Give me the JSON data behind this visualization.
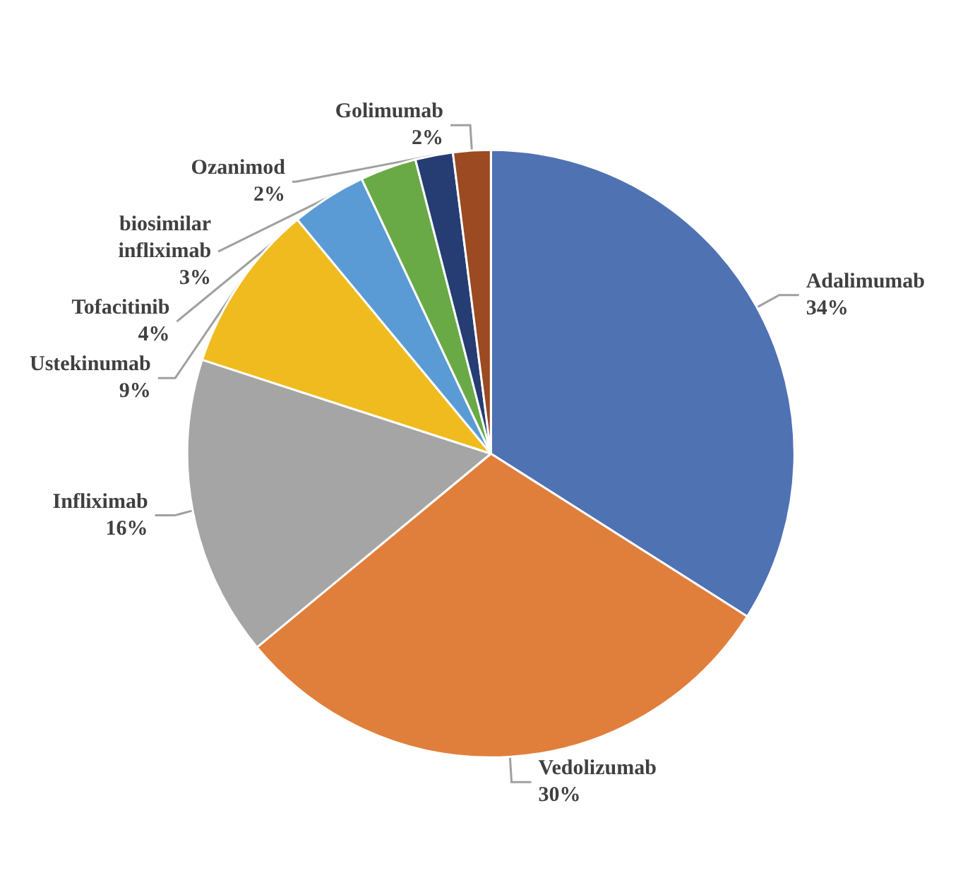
{
  "chart_data": {
    "type": "pie",
    "categories": [
      "Adalimumab",
      "Vedolizumab",
      "Infliximab",
      "Ustekinumab",
      "Tofacitinib",
      "biosimilar\ninfliximab",
      "Ozanimod",
      "Golimumab"
    ],
    "values": [
      34,
      30,
      16,
      9,
      4,
      3,
      2,
      2
    ],
    "value_labels": [
      "34%",
      "30%",
      "16%",
      "9%",
      "4%",
      "3%",
      "2%",
      "2%"
    ],
    "colors": [
      "#4f72b3",
      "#e07f3b",
      "#a5a5a5",
      "#f0bb1e",
      "#5b9bd5",
      "#6aaa46",
      "#253d73",
      "#9b4a22"
    ],
    "legend": false
  }
}
